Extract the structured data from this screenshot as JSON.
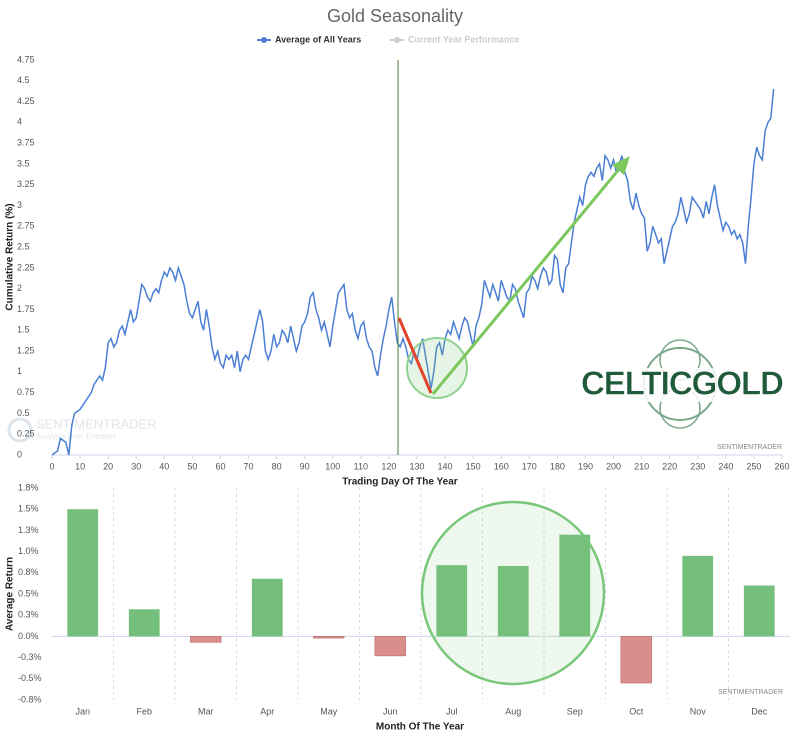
{
  "chart_data": [
    {
      "type": "line",
      "title": "Gold Seasonality",
      "xlabel": "Trading Day Of The Year",
      "ylabel": "Cumulative Return (%)",
      "x": [
        0,
        2,
        3,
        5,
        6,
        7,
        8,
        10,
        12,
        14,
        15,
        17,
        18,
        19,
        20,
        21,
        22,
        23,
        24,
        25,
        26,
        27,
        28,
        29,
        30,
        31,
        32,
        33,
        34,
        35,
        36,
        37,
        38,
        39,
        40,
        41,
        42,
        43,
        44,
        45,
        46,
        47,
        48,
        49,
        50,
        51,
        52,
        53,
        54,
        55,
        56,
        57,
        58,
        59,
        60,
        61,
        62,
        63,
        64,
        65,
        66,
        67,
        68,
        69,
        70,
        71,
        72,
        73,
        74,
        75,
        76,
        77,
        78,
        79,
        80,
        81,
        82,
        83,
        84,
        85,
        86,
        87,
        88,
        89,
        90,
        91,
        92,
        93,
        94,
        95,
        96,
        97,
        98,
        99,
        100,
        101,
        102,
        103,
        104,
        105,
        106,
        107,
        108,
        109,
        110,
        111,
        112,
        113,
        114,
        115,
        116,
        117,
        118,
        119,
        120,
        121,
        122,
        123,
        124,
        125,
        126,
        127,
        128,
        129,
        130,
        131,
        132,
        133,
        134,
        135,
        136,
        137,
        138,
        139,
        140,
        141,
        142,
        143,
        144,
        145,
        146,
        147,
        148,
        149,
        150,
        151,
        152,
        153,
        154,
        155,
        156,
        157,
        158,
        159,
        160,
        161,
        162,
        163,
        164,
        165,
        166,
        167,
        168,
        169,
        170,
        171,
        172,
        173,
        174,
        175,
        176,
        177,
        178,
        179,
        180,
        181,
        182,
        183,
        184,
        185,
        186,
        187,
        188,
        189,
        190,
        191,
        192,
        193,
        194,
        195,
        196,
        197,
        198,
        199,
        200,
        201,
        202,
        203,
        204,
        205,
        206,
        207,
        208,
        209,
        210,
        211,
        212,
        213,
        214,
        215,
        216,
        217,
        218,
        219,
        220,
        221,
        222,
        223,
        224,
        225,
        226,
        227,
        228,
        229,
        230,
        231,
        232,
        233,
        234,
        235,
        236,
        237,
        238,
        239,
        240,
        241,
        242,
        243,
        244,
        245,
        246,
        247,
        248,
        249,
        250,
        251,
        252,
        253,
        254,
        255,
        256,
        257
      ],
      "series": [
        {
          "name": "Average of All Years",
          "color": "#4a7fd4",
          "values": [
            0,
            0.05,
            0.2,
            0.15,
            0,
            0.35,
            0.5,
            0.55,
            0.65,
            0.75,
            0.85,
            0.95,
            0.9,
            1.05,
            1.35,
            1.4,
            1.3,
            1.35,
            1.5,
            1.55,
            1.45,
            1.6,
            1.75,
            1.6,
            1.65,
            1.85,
            2.05,
            2.0,
            1.9,
            1.85,
            1.95,
            2.0,
            1.95,
            2.1,
            2.2,
            2.15,
            2.25,
            2.2,
            2.1,
            2.25,
            2.15,
            2.05,
            1.85,
            1.7,
            1.65,
            1.75,
            1.85,
            1.6,
            1.5,
            1.75,
            1.55,
            1.3,
            1.15,
            1.25,
            1.1,
            1.05,
            1.2,
            1.15,
            1.2,
            1.05,
            1.25,
            1.0,
            1.15,
            1.2,
            1.15,
            1.3,
            1.45,
            1.6,
            1.75,
            1.6,
            1.25,
            1.15,
            1.25,
            1.45,
            1.3,
            1.35,
            1.5,
            1.45,
            1.35,
            1.55,
            1.4,
            1.25,
            1.35,
            1.55,
            1.6,
            1.7,
            1.9,
            1.95,
            1.75,
            1.65,
            1.5,
            1.6,
            1.45,
            1.3,
            1.55,
            1.75,
            1.95,
            2.0,
            2.05,
            1.75,
            1.65,
            1.7,
            1.5,
            1.4,
            1.55,
            1.6,
            1.4,
            1.3,
            1.25,
            1.05,
            0.95,
            1.2,
            1.4,
            1.55,
            1.75,
            1.9,
            1.6,
            1.35,
            1.3,
            1.4,
            1.3,
            1.15,
            1.1,
            1.25,
            1.15,
            1.3,
            1.4,
            1.2,
            1.0,
            0.8,
            1.0,
            1.3,
            1.35,
            1.2,
            1.4,
            1.5,
            1.45,
            1.6,
            1.5,
            1.4,
            1.55,
            1.65,
            1.6,
            1.45,
            1.3,
            1.55,
            1.65,
            1.8,
            2.1,
            2.0,
            1.9,
            2.05,
            1.95,
            1.85,
            2.1,
            2.0,
            1.9,
            1.85,
            2.05,
            2.0,
            1.85,
            1.75,
            1.65,
            1.95,
            2.0,
            2.15,
            2.1,
            2.0,
            2.15,
            2.25,
            2.2,
            2.05,
            2.1,
            2.4,
            2.35,
            2.05,
            1.95,
            2.25,
            2.3,
            2.55,
            2.8,
            2.95,
            3.1,
            3.0,
            3.25,
            3.35,
            3.4,
            3.35,
            3.45,
            3.5,
            3.3,
            3.6,
            3.55,
            3.45,
            3.55,
            3.4,
            3.5,
            3.6,
            3.4,
            3.3,
            3.05,
            2.95,
            3.15,
            3.0,
            2.9,
            2.85,
            2.45,
            2.55,
            2.75,
            2.65,
            2.55,
            2.6,
            2.3,
            2.45,
            2.6,
            2.75,
            2.8,
            2.9,
            3.1,
            2.95,
            2.8,
            2.9,
            3.1,
            3.05,
            3.0,
            2.95,
            2.85,
            3.05,
            2.9,
            3.1,
            3.25,
            3.0,
            2.85,
            2.7,
            2.8,
            2.75,
            2.65,
            2.7,
            2.6,
            2.65,
            2.55,
            2.3,
            2.75,
            3.1,
            3.5,
            3.7,
            3.6,
            3.55,
            3.9,
            4.0,
            4.05,
            4.4
          ]
        }
      ],
      "legend_inactive": {
        "name": "Current Year Performance",
        "color": "#cccccc"
      },
      "xlim": [
        0,
        260
      ],
      "xticks": [
        0,
        10,
        20,
        30,
        40,
        50,
        60,
        70,
        80,
        90,
        100,
        110,
        120,
        130,
        140,
        150,
        160,
        170,
        180,
        190,
        200,
        210,
        220,
        230,
        240,
        250,
        260
      ],
      "ylim": [
        0,
        4.75
      ],
      "yticks": [
        0,
        0.25,
        0.5,
        0.75,
        1,
        1.25,
        1.5,
        1.75,
        2,
        2.25,
        2.5,
        2.75,
        3,
        3.25,
        3.5,
        3.75,
        4,
        4.25,
        4.5,
        4.75
      ],
      "grid": false,
      "logo": "CELTICGOLD",
      "watermarks": [
        "SENTIMENTRADER",
        "Analysis over Emotion",
        "SENTIMENTRADER"
      ]
    },
    {
      "type": "bar",
      "xlabel": "Month Of The Year",
      "ylabel": "Average Return",
      "categories": [
        "Jan",
        "Feb",
        "Mar",
        "Apr",
        "May",
        "Jun",
        "Jul",
        "Aug",
        "Sep",
        "Oct",
        "Nov",
        "Dec"
      ],
      "values": [
        1.5,
        0.32,
        -0.07,
        0.68,
        -0.02,
        -0.23,
        0.84,
        0.83,
        1.2,
        -0.55,
        0.95,
        0.6
      ],
      "colors": {
        "positive": "#74bf7b",
        "negative": "#d98e8c"
      },
      "ylim": [
        -0.75,
        1.75
      ],
      "yticks": [
        {
          "value": 1.75,
          "label": "1.8%"
        },
        {
          "value": 1.5,
          "label": "1.5%"
        },
        {
          "value": 1.25,
          "label": "1.3%"
        },
        {
          "value": 1,
          "label": "1.0%"
        },
        {
          "value": 0.75,
          "label": "0.8%"
        },
        {
          "value": 0.5,
          "label": "0.5%"
        },
        {
          "value": 0.25,
          "label": "0.3%"
        },
        {
          "value": 0,
          "label": "0.0%"
        },
        {
          "value": -0.25,
          "label": "-0.3%"
        },
        {
          "value": -0.5,
          "label": "-0.5%"
        },
        {
          "value": -0.75,
          "label": "-0.8%"
        }
      ],
      "grid": false,
      "category_separators": true,
      "watermarks": [
        "SENTIMENTRADER"
      ]
    }
  ]
}
